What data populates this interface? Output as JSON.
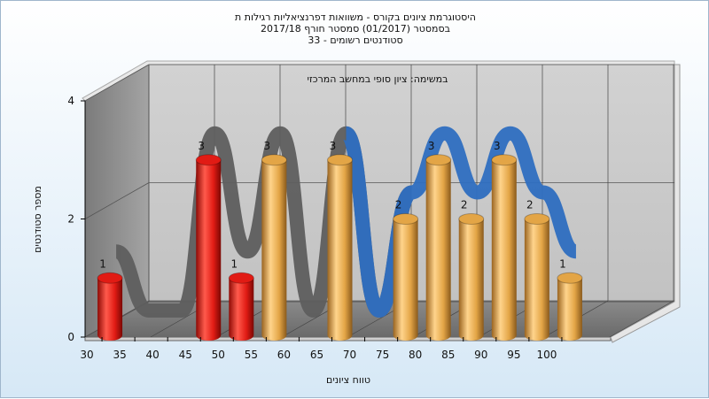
{
  "header": {
    "title_line1": "היסטוגרמת ציונים בקורס - משוואות דפרנציאליות רגילות ת",
    "title_line2": "בסמסטר  (01/2017)  סמסטר חורף 2017/18",
    "title_line3": "סטודנטים רשומים - 33"
  },
  "chart_data": {
    "type": "bar",
    "title": "היסטוגרמת ציונים בקורס - משוואות דפרנציאליות רגילות ת",
    "annotation": "במשימה: ציון סופי במחשב המרכזי",
    "xlabel": "טווח ציונים",
    "ylabel": "מספר סטודנטים",
    "ylim": [
      0,
      4
    ],
    "y_ticks": [
      "0",
      "2",
      "4"
    ],
    "categories": [
      "30",
      "35",
      "40",
      "45",
      "50",
      "55",
      "60",
      "65",
      "70",
      "75",
      "80",
      "85",
      "90",
      "95",
      "100"
    ],
    "series": [
      {
        "color": "#e11b14",
        "values": [
          1,
          0,
          0,
          3,
          1,
          0,
          0,
          0,
          0,
          0,
          0,
          0,
          0,
          0,
          0
        ]
      },
      {
        "color": "#e3a546",
        "values": [
          0,
          0,
          0,
          0,
          0,
          3,
          0,
          3,
          0,
          2,
          3,
          2,
          3,
          2,
          1
        ]
      }
    ],
    "colors": {
      "ribbon_gray": "#5e5e5e",
      "ribbon_blue": "#2e6ec0"
    }
  }
}
